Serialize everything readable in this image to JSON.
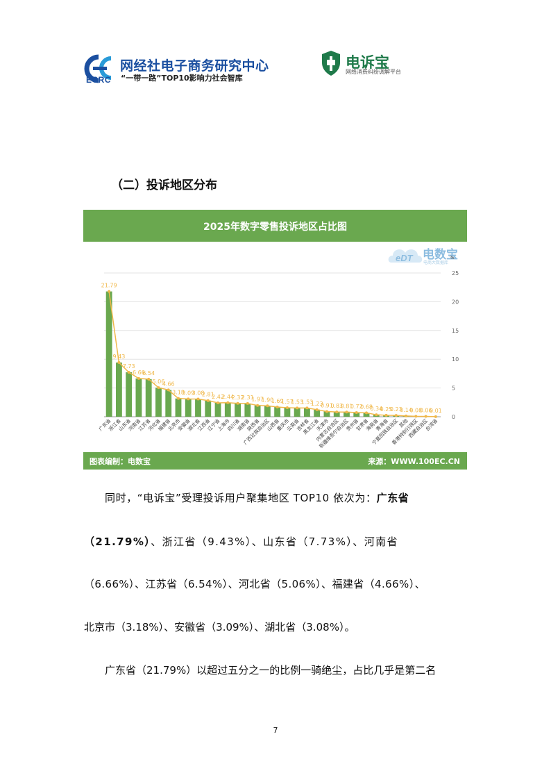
{
  "header": {
    "ecrc_name": "网经社电子商务研究中心",
    "ecrc_abbr": "ECRC",
    "ecrc_slogan": "“一带一路”TOP10影响力社会智库",
    "dsb_name": "电诉宝",
    "dsb_sub": "网络消费纠纷调解平台"
  },
  "section_title": "（二）投诉地区分布",
  "chart_header": {
    "title": "2025年数字零售投诉地区占比图",
    "watermark_name": "电数宝",
    "watermark_sub": "电商大数据库",
    "watermark_logo": "eDT",
    "footer_left": "图表编制：电数宝",
    "footer_right": "来源：WWW.100EC.CN"
  },
  "chart_data": {
    "type": "bar",
    "title": "2025年数字零售投诉地区占比图",
    "ylabel": "%",
    "ylim": [
      0,
      25
    ],
    "yticks": [
      0,
      5,
      10,
      15,
      20,
      25
    ],
    "grid": true,
    "bar_color": "#6aa84f",
    "line_color": "#f0b84a",
    "categories": [
      "广东省",
      "浙江省",
      "山东省",
      "河南省",
      "江苏省",
      "河北省",
      "福建省",
      "北京市",
      "安徽省",
      "湖北省",
      "江西省",
      "辽宁省",
      "上海市",
      "四川省",
      "湖南省",
      "陕西省",
      "广西壮族自治区",
      "山西省",
      "重庆市",
      "云南省",
      "吉林省",
      "黑龙江省",
      "天津市",
      "内蒙古自治区",
      "新疆维吾尔自治区",
      "贵州省",
      "甘肃省",
      "海南省",
      "青海省",
      "宁夏回族自治区",
      "其他",
      "香港特别行政区",
      "西藏自治区",
      "台湾省"
    ],
    "values": [
      21.79,
      9.43,
      7.73,
      6.66,
      6.54,
      5.06,
      4.66,
      3.18,
      3.09,
      3.08,
      2.81,
      2.42,
      2.44,
      2.32,
      2.31,
      1.97,
      1.9,
      1.69,
      1.57,
      1.53,
      1.53,
      1.23,
      0.91,
      0.83,
      0.81,
      0.72,
      0.68,
      0.34,
      0.25,
      0.23,
      0.14,
      0.08,
      0.06,
      0.01
    ],
    "data_labels": [
      "21.79",
      "9.43",
      "7.73",
      "6.66",
      "6.54",
      "5.06",
      "4.66",
      "3.18",
      "3.09",
      "3.08",
      "2.81",
      "2.42",
      "2.44",
      "2.32",
      "2.31",
      "1.97",
      "1.90",
      "1.69",
      "1.57",
      "1.53",
      "1.53",
      "1.23",
      "0.91",
      "0.83",
      "0.81",
      "0.72",
      "0.68",
      "0.34",
      "0.25",
      "0.23",
      "0.14",
      "0.08",
      "0.06",
      "0.01"
    ],
    "xtick_labels": [
      "广东省",
      "",
      "山东省",
      "",
      "江苏省",
      "",
      "福建省",
      "",
      "安徽省",
      "",
      "江西省",
      "",
      "上海市",
      "",
      "湖南省",
      "",
      "广西壮族自治区",
      "",
      "重庆市",
      "",
      "吉林省",
      "",
      "天津市",
      "",
      "新疆维吾尔自治区",
      "",
      "甘肃省",
      "",
      "青海省",
      "",
      "其他",
      "",
      "西藏自治区",
      ""
    ],
    "xtick_labels_alt": [
      "",
      "浙江省",
      "",
      "河南省",
      "",
      "河北省",
      "",
      "北京市",
      "",
      "湖北省",
      "",
      "辽宁省",
      "",
      "四川省",
      "",
      "陕西省",
      "",
      "山西省",
      "",
      "云南省",
      "",
      "黑龙江省",
      "",
      "内蒙古自治区",
      "",
      "贵州省",
      "",
      "海南省",
      "",
      "宁夏回族自治区",
      "",
      "香港特别行政区",
      "",
      "台湾省"
    ]
  },
  "body": {
    "p1_a": "同时，“电诉宝”受理投诉用户聚集地区 TOP10 依次为：",
    "p1_b": "广东省",
    "p2_a": "（21.79%）",
    "p2_b": "、浙江省（9.43%）、山东省（7.73%）、河南省",
    "p3": "（6.66%）、江苏省（6.54%）、河北省（5.06%）、福建省（4.66%）、",
    "p4": "北京市（3.18%）、安徽省（3.09%）、湖北省（3.08%）。",
    "p5": "广东省（21.79%）以超过五分之一的比例一骑绝尘，占比几乎是第二名"
  },
  "page_number": "7"
}
